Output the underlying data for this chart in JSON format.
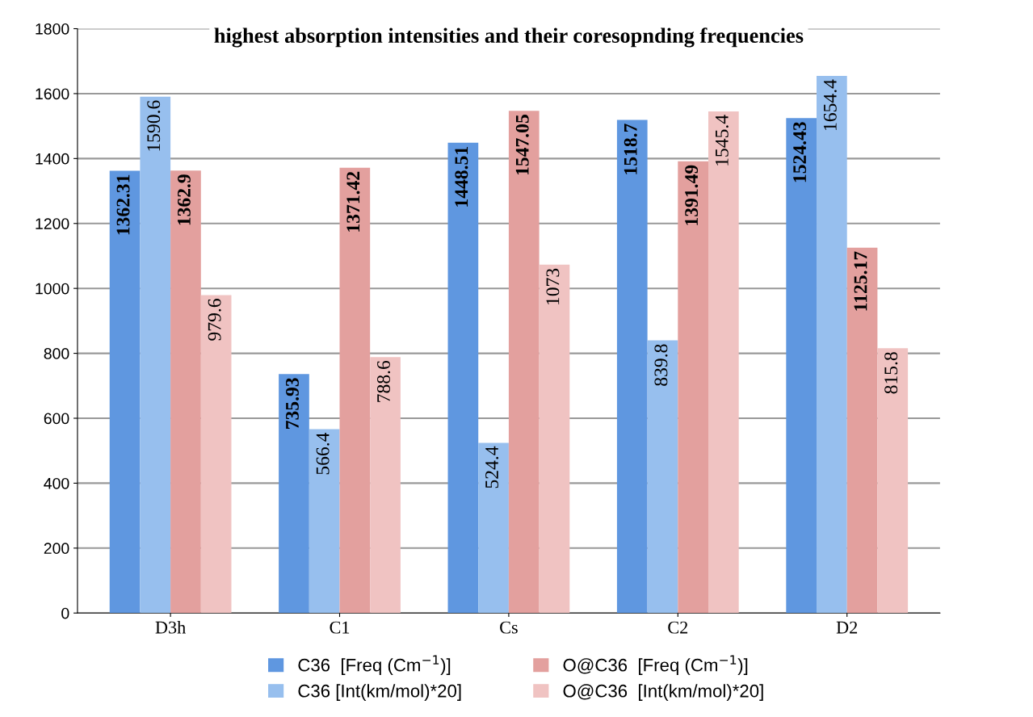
{
  "chart_data": {
    "type": "bar",
    "title": "highest absorption intensities and their coresopnding frequencies",
    "categories": [
      "D3h",
      "C1",
      "Cs",
      "C2",
      "D2"
    ],
    "series": [
      {
        "name": "C36  [Freq (Cm$^{−1}$)]",
        "color": "#5f97e0",
        "values": [
          1362.31,
          735.93,
          1448.51,
          1518.7,
          1524.43
        ]
      },
      {
        "name": "C36 [Int(km/mol)*20]",
        "color": "#97bfee",
        "values": [
          1590.6,
          566.4,
          524.4,
          839.8,
          1654.4
        ]
      },
      {
        "name": "O@C36  [Freq (Cm$^{−1}$)]",
        "color": "#e3a09e",
        "values": [
          1362.9,
          1371.42,
          1547.05,
          1391.49,
          1125.17
        ]
      },
      {
        "name": "O@C36  [Int(km/mol)*20]",
        "color": "#f0c3c2",
        "values": [
          979.6,
          788.6,
          1073,
          1545.4,
          815.8
        ]
      }
    ],
    "ylim": [
      0,
      1800
    ],
    "yticks": [
      0,
      200,
      400,
      600,
      800,
      1000,
      1200,
      1400,
      1600,
      1800
    ],
    "grid": "y",
    "legend": "bottom",
    "data_labels": true
  }
}
